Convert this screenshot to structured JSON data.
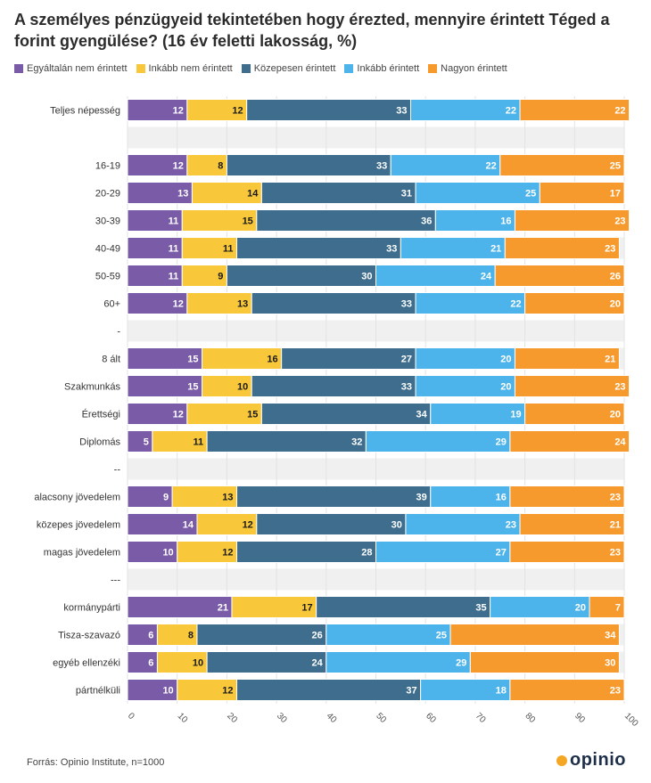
{
  "title": "A személyes pénzügyeid tekintetében hogy érezted, mennyire érintett Téged a forint gyengülése? (16 év feletti lakosság, %)",
  "source": "Forrás: Opinio Institute, n=1000",
  "logo": {
    "text": "opinio"
  },
  "colors": {
    "label_dark": "#ffffff",
    "label_light": "#1a1a1a",
    "grid": "#e3e3e3",
    "row_stripe": "#f0f0f0"
  },
  "chart_data": {
    "type": "bar",
    "orientation": "horizontal",
    "stacked": true,
    "title": "A személyes pénzügyeid tekintetében hogy érezted, mennyire érintett Téged a forint gyengülése? (16 év feletti lakosság, %)",
    "xlim": [
      0,
      100
    ],
    "x_ticks": [
      0,
      10,
      20,
      30,
      40,
      50,
      60,
      70,
      80,
      90,
      100
    ],
    "legend_position": "top-left",
    "categories": [
      "Teljes népesség",
      "",
      "16-19",
      "20-29",
      "30-39",
      "40-49",
      "50-59",
      "60+",
      "-",
      "8 ált",
      "Szakmunkás",
      "Érettségi",
      "Diplomás",
      "--",
      "alacsony jövedelem",
      "közepes jövedelem",
      "magas jövedelem",
      "---",
      "kormánypárti",
      "Tisza-szavazó",
      "egyéb ellenzéki",
      "pártnélküli"
    ],
    "series": [
      {
        "name": "Egyáltalán nem érintett",
        "color": "#7a5ba8",
        "values": [
          12,
          null,
          12,
          13,
          11,
          11,
          11,
          12,
          null,
          15,
          15,
          12,
          5,
          null,
          9,
          14,
          10,
          null,
          21,
          6,
          6,
          10
        ]
      },
      {
        "name": "Inkább nem érintett",
        "color": "#f8c83a",
        "values": [
          12,
          null,
          8,
          14,
          15,
          11,
          9,
          13,
          null,
          16,
          10,
          15,
          11,
          null,
          13,
          12,
          12,
          null,
          17,
          8,
          10,
          12
        ]
      },
      {
        "name": "Közepesen érintett",
        "color": "#3e6d8e",
        "values": [
          33,
          null,
          33,
          31,
          36,
          33,
          30,
          33,
          null,
          27,
          33,
          34,
          32,
          null,
          39,
          30,
          28,
          null,
          35,
          26,
          24,
          37
        ]
      },
      {
        "name": "Inkább érintett",
        "color": "#4cb4ea",
        "values": [
          22,
          null,
          22,
          25,
          16,
          21,
          24,
          22,
          null,
          20,
          20,
          19,
          29,
          null,
          16,
          23,
          27,
          null,
          20,
          25,
          29,
          18
        ]
      },
      {
        "name": "Nagyon érintett",
        "color": "#f79a2e",
        "values": [
          22,
          null,
          25,
          17,
          23,
          23,
          26,
          20,
          null,
          21,
          23,
          20,
          24,
          null,
          23,
          21,
          23,
          null,
          7,
          34,
          30,
          23
        ]
      }
    ]
  }
}
